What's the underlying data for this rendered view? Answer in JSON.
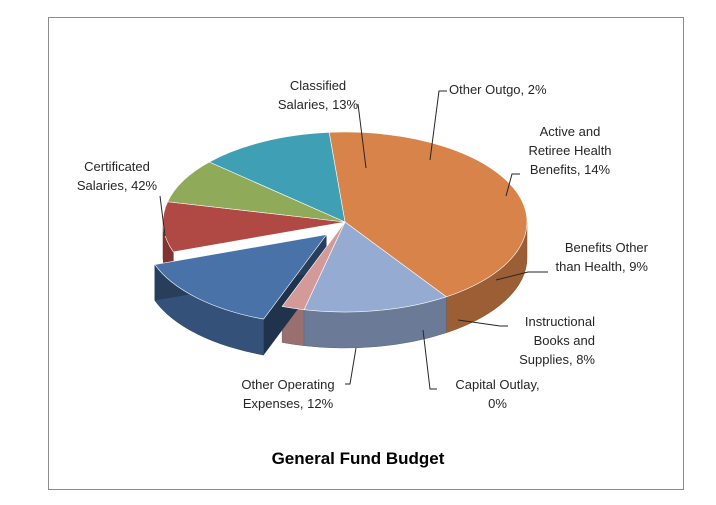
{
  "chart_data": {
    "type": "pie",
    "title": "General Fund Budget",
    "three_d": true,
    "exploded_slice": "Active and Retiree Health Benefits",
    "slices": [
      {
        "label": "Certificated Salaries",
        "value": 42,
        "color": "#D8834A"
      },
      {
        "label": "Classified Salaries",
        "value": 13,
        "color": "#95ABD2"
      },
      {
        "label": "Other Outgo",
        "value": 2,
        "color": "#D49A9A"
      },
      {
        "label": "Active and Retiree Health Benefits",
        "value": 14,
        "color": "#4872A8"
      },
      {
        "label": "Benefits Other than Health",
        "value": 9,
        "color": "#B04844"
      },
      {
        "label": "Instructional Books and Supplies",
        "value": 8,
        "color": "#8FAA58"
      },
      {
        "label": "Capital Outlay",
        "value": 0,
        "color": "#7A5F99"
      },
      {
        "label": "Other Operating Expenses",
        "value": 12,
        "color": "#3FA0B5"
      }
    ],
    "data_labels": [
      "Certificated\nSalaries, 42%",
      "Classified\nSalaries, 13%",
      "Other Outgo, 2%",
      "Active and\nRetiree Health\nBenefits, 14%",
      "Benefits Other\nthan Health, 9%",
      "Instructional\nBooks and\nSupplies, 8%",
      "Capital Outlay,\n0%",
      "Other Operating\nExpenses, 12%"
    ]
  }
}
